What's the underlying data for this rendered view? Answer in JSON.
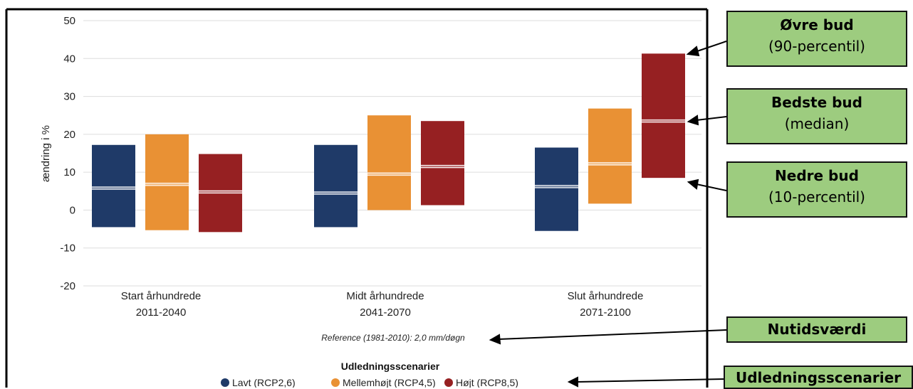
{
  "chart_data": {
    "type": "bar",
    "subtype": "floating-range-with-median",
    "ylabel": "ændring i %",
    "ylim": [
      -20,
      50
    ],
    "yticks": [
      50,
      40,
      30,
      20,
      10,
      0,
      -10,
      -20
    ],
    "grid": true,
    "categories": [
      {
        "line1": "Start århundrede",
        "line2": "2011-2040"
      },
      {
        "line1": "Midt århundrede",
        "line2": "2041-2070"
      },
      {
        "line1": "Slut århundrede",
        "line2": "2071-2100"
      }
    ],
    "series": [
      {
        "name": "Lavt (RCP2,6)",
        "color": "#1f3a68",
        "low": [
          -4.5,
          -4.5,
          -5.5
        ],
        "median": [
          5.8,
          4.5,
          6.2
        ],
        "high": [
          17.2,
          17.2,
          16.5
        ]
      },
      {
        "name": "Mellemhøjt (RCP4,5)",
        "color": "#e99134",
        "low": [
          -5.3,
          0,
          1.7
        ],
        "median": [
          6.8,
          9.5,
          12.2
        ],
        "high": [
          20,
          25,
          26.8
        ]
      },
      {
        "name": "Højt (RCP8,5)",
        "color": "#962022",
        "low": [
          -5.8,
          1.3,
          8.5
        ],
        "median": [
          4.8,
          11.5,
          23.5
        ],
        "high": [
          14.8,
          23.5,
          41.3
        ]
      }
    ],
    "reference_note": "Reference (1981-2010): 2,0 mm/døgn",
    "legend_title": "Udledningsscenarier",
    "legend_position": "bottom"
  },
  "callouts": {
    "upper": {
      "title": "Øvre bud",
      "sub": "(90-percentil)"
    },
    "median": {
      "title": "Bedste bud",
      "sub": "(median)"
    },
    "lower": {
      "title": "Nedre bud",
      "sub": "(10-percentil)"
    },
    "present": {
      "title": "Nutidsværdi"
    },
    "scenarios": {
      "title": "Udledningsscenarier"
    }
  },
  "colors": {
    "callout_fill": "#9dcc7f",
    "grid": "#dddddd"
  }
}
